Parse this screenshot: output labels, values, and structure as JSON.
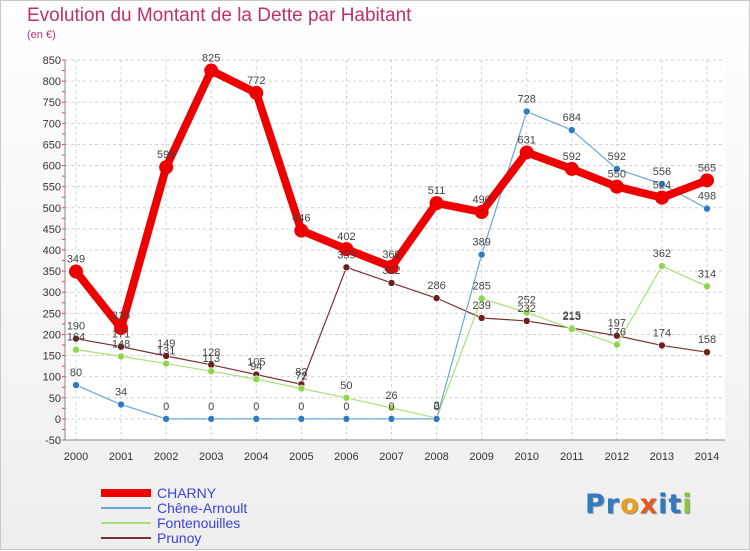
{
  "header": {
    "title": "Evolution du Montant de la Dette par Habitant",
    "subtitle": "(en €)"
  },
  "chart_data": {
    "type": "line",
    "x": [
      2000,
      2001,
      2002,
      2003,
      2004,
      2005,
      2006,
      2007,
      2008,
      2009,
      2010,
      2011,
      2012,
      2013,
      2014
    ],
    "y_ticks": [
      -50,
      0,
      50,
      100,
      150,
      200,
      250,
      300,
      350,
      400,
      450,
      500,
      550,
      600,
      650,
      700,
      750,
      800,
      850
    ],
    "ylim": [
      -50,
      850
    ],
    "grid": true,
    "legend_position": "bottom-left",
    "series": [
      {
        "name": "CHARNY",
        "color": "#ee0000",
        "marker": "#ee0000",
        "width": 8,
        "radius": 7,
        "values": [
          349,
          215,
          596,
          825,
          772,
          446,
          402,
          360,
          511,
          490,
          631,
          592,
          550,
          524,
          565
        ],
        "labels": [
          "349",
          "215",
          "596",
          "825",
          "772",
          "446",
          "402",
          "360",
          "511",
          "490",
          "631",
          "592",
          "550",
          "524",
          "565"
        ]
      },
      {
        "name": "Chêne-Arnoult",
        "color": "#6aa5d8",
        "marker": "#2f7ac0",
        "width": 1.2,
        "radius": 3.5,
        "values": [
          80,
          34,
          0,
          0,
          0,
          0,
          0,
          0,
          0,
          389,
          728,
          684,
          592,
          556,
          498
        ],
        "labels": [
          "80",
          "34",
          "0",
          "0",
          "0",
          "0",
          "0",
          "0",
          "0",
          "389",
          "728",
          "684",
          "592",
          "556",
          "498"
        ]
      },
      {
        "name": "Fontenouilles",
        "color": "#a6e07a",
        "marker": "#8fd64a",
        "width": 1.2,
        "radius": 3.5,
        "values": [
          164,
          148,
          131,
          113,
          94,
          72,
          50,
          26,
          2,
          285,
          252,
          213,
          176,
          362,
          314
        ],
        "labels": [
          "164",
          "148",
          "131",
          "113",
          "94",
          "72",
          "50",
          "26",
          "2",
          "285",
          "252",
          "213",
          "176",
          "362",
          "314"
        ]
      },
      {
        "name": "Prunoy",
        "color": "#7a3030",
        "marker": "#6b1f1f",
        "width": 1.2,
        "radius": 3.5,
        "values": [
          190,
          171,
          149,
          128,
          105,
          82,
          359,
          322,
          286,
          239,
          232,
          215,
          197,
          174,
          158
        ],
        "labels": [
          "190",
          "171",
          "149",
          "128",
          "105",
          "82",
          "359",
          "322",
          "286",
          "239",
          "232",
          "215",
          "197",
          "174",
          "158"
        ]
      }
    ]
  },
  "legend": {
    "items": [
      {
        "label": "CHARNY",
        "color": "#ee0000",
        "width": 8
      },
      {
        "label": "Chêne-Arnoult",
        "color": "#6aa5d8",
        "width": 1.5
      },
      {
        "label": "Fontenouilles",
        "color": "#a6e07a",
        "width": 1.5
      },
      {
        "label": "Prunoy",
        "color": "#7a3030",
        "width": 1.5
      }
    ]
  },
  "logo": {
    "letters": [
      {
        "ch": "P",
        "color": "#2f7ac0"
      },
      {
        "ch": "r",
        "color": "#2f7ac0"
      },
      {
        "ch": "o",
        "color": "#e8a020"
      },
      {
        "ch": "x",
        "color": "#e05a20"
      },
      {
        "ch": "i",
        "color": "#2f7ac0"
      },
      {
        "ch": "t",
        "color": "#2f7ac0"
      },
      {
        "ch": "i",
        "color": "#8cc63f"
      }
    ]
  }
}
